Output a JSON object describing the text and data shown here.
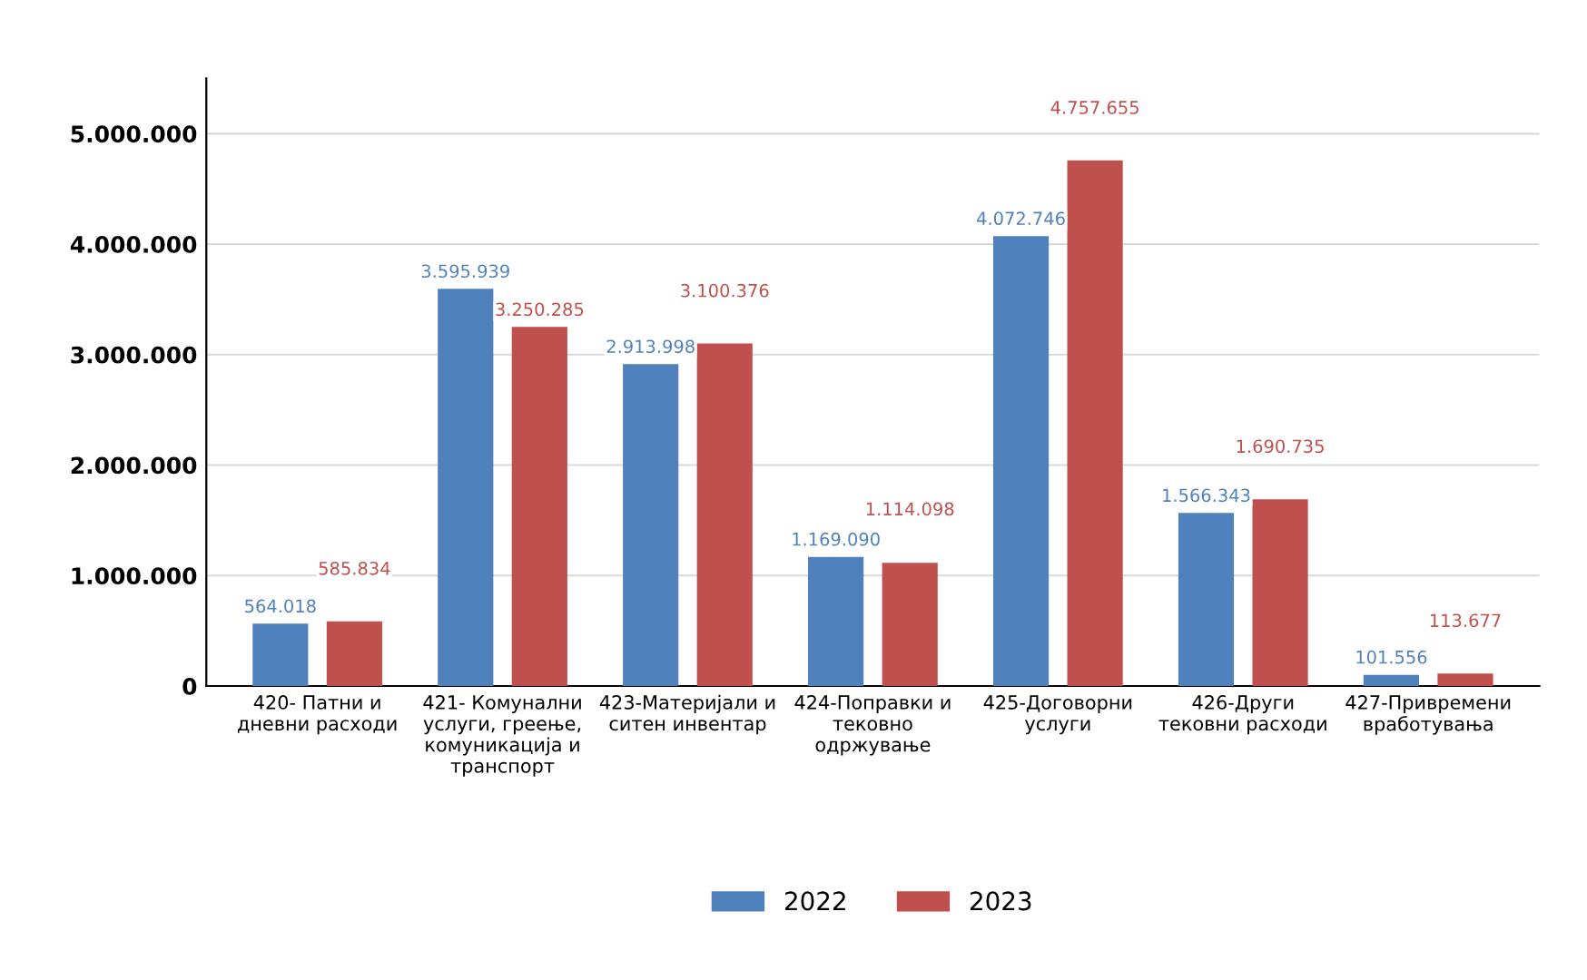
{
  "chart_data": {
    "type": "bar",
    "categories": [
      "420- Патни и\nдневни расходи",
      "421- Комунални\nуслуги, греење,\nкомуникација и\nтранспорт",
      "423-Материјали и\nситен инвентар",
      "424-Поправки и\nтековно\nодржување",
      "425-Договорни\nуслуги",
      "426-Други\nтековни расходи",
      "427-Привремени\nвработувања"
    ],
    "series": [
      {
        "name": "2022",
        "color": "#4f81bd",
        "values": [
          564018,
          3595939,
          2913998,
          1169090,
          4072746,
          1566343,
          101556
        ],
        "value_labels": [
          "564.018",
          "3.595.939",
          "2.913.998",
          "1.169.090",
          "4.072.746",
          "1.566.343",
          "101.556"
        ]
      },
      {
        "name": "2023",
        "color": "#c0504d",
        "values": [
          585834,
          3250285,
          3100376,
          1114098,
          4757655,
          1690735,
          113677
        ],
        "value_labels": [
          "585.834",
          "3.250.285",
          "3.100.376",
          "1.114.098",
          "4.757.655",
          "1.690.735",
          "113.677"
        ]
      }
    ],
    "ylim": [
      0,
      5500000
    ],
    "yticks": [
      {
        "value": 0,
        "label": "0"
      },
      {
        "value": 1000000,
        "label": "1.000.000"
      },
      {
        "value": 2000000,
        "label": "2.000.000"
      },
      {
        "value": 3000000,
        "label": "3.000.000"
      },
      {
        "value": 4000000,
        "label": "4.000.000"
      },
      {
        "value": 5000000,
        "label": "5.000.000"
      }
    ],
    "grid": "y",
    "legend": "bottom"
  }
}
